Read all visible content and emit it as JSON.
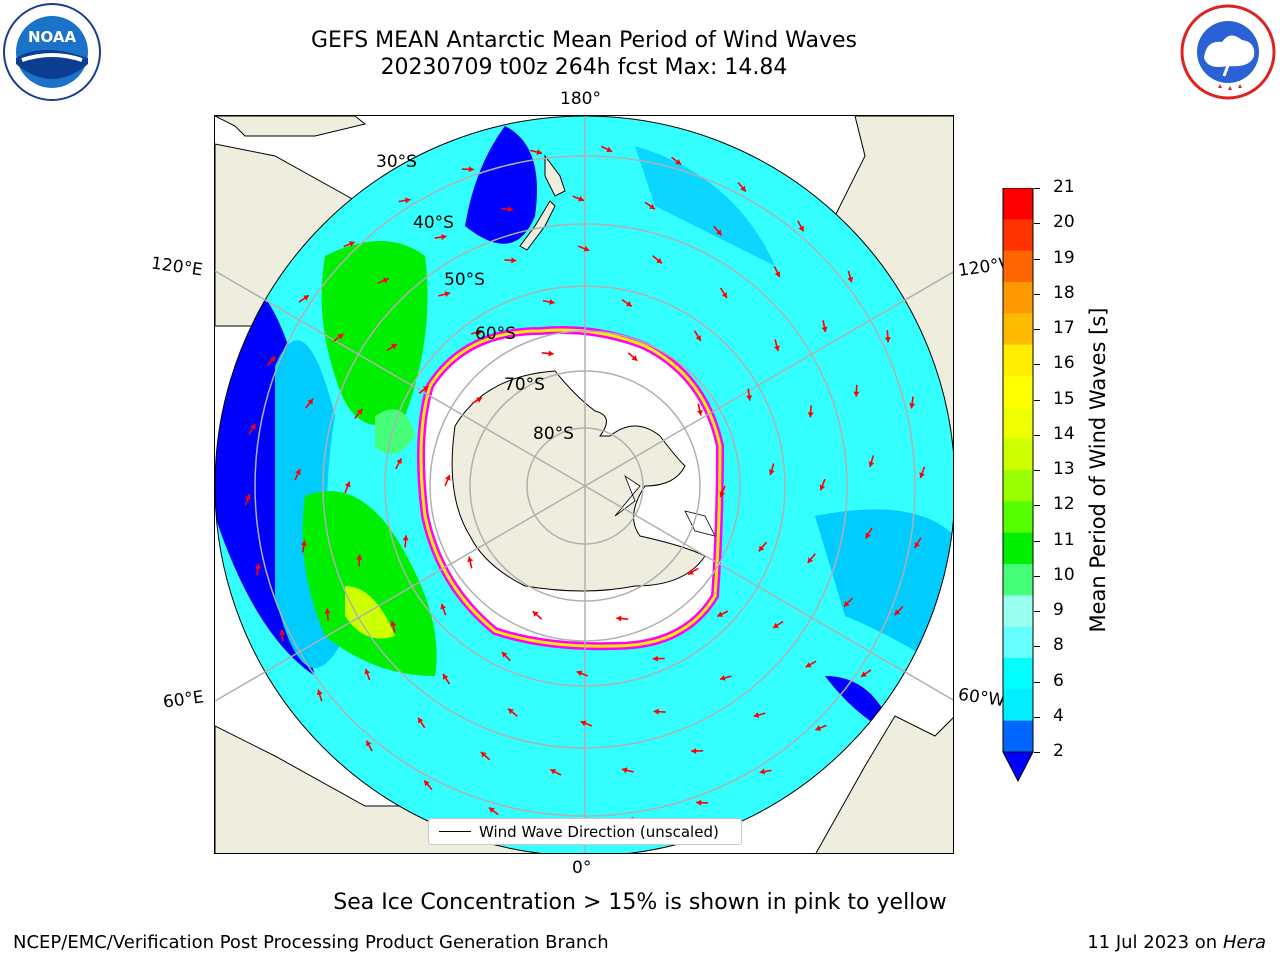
{
  "title_line1": "GEFS MEAN Antarctic Mean Period of Wind Waves",
  "title_line2": "20230709 t00z 264h fcst   Max: 14.84",
  "logos": {
    "left": "NOAA",
    "left_ring": "NATIONAL OCEANIC AND ATMOSPHERIC ADMINISTRATION · U.S. DEPARTMENT OF COMMERCE",
    "right_ring": "NATIONAL WEATHER SERVICE"
  },
  "map": {
    "projection": "south-polar-stereographic",
    "lon_labels": {
      "top": "180°",
      "bottom": "0°",
      "left_upper": "120°E",
      "left_lower": "60°E",
      "right_upper": "120°W",
      "right_lower": "60°W"
    },
    "lat_labels": [
      "30°S",
      "40°S",
      "50°S",
      "60°S",
      "70°S",
      "80°S"
    ],
    "colors": {
      "land": "#efedde",
      "ocean_main": "#33ffff",
      "ocean_alt": "#00ccff",
      "ocean_low": "#0000ff",
      "ice_edge": "#ff00ff",
      "ice_fill": "#ffffff",
      "arrow": "#ff0000"
    }
  },
  "legend_label": "Wind Wave Direction (unscaled)",
  "colorbar": {
    "label": "Mean Period of Wind Waves [s]",
    "ticks": [
      "21",
      "20",
      "19",
      "18",
      "17",
      "16",
      "15",
      "14",
      "13",
      "12",
      "11",
      "10",
      "9",
      "8",
      "6",
      "4",
      "2"
    ],
    "colors_top_to_bottom": [
      "#ff0000",
      "#ff3300",
      "#ff6600",
      "#ff9900",
      "#ffbb00",
      "#ffee00",
      "#ffff00",
      "#eeff00",
      "#ccff00",
      "#99ff00",
      "#55ff00",
      "#00ee00",
      "#44ff77",
      "#99ffee",
      "#66ffff",
      "#00ffff",
      "#00eeff",
      "#0066ff"
    ],
    "extend_color": "#0000ff"
  },
  "note": "Sea Ice Concentration > 15% is shown in pink to yellow",
  "footer_left": "NCEP/EMC/Verification Post Processing Product Generation Branch",
  "footer_date": "11 Jul 2023 on ",
  "footer_machine": "Hera"
}
